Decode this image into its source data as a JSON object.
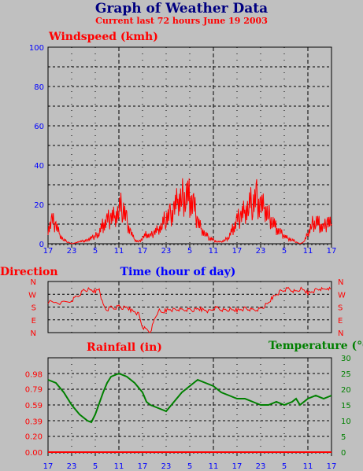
{
  "header": {
    "title": "Graph of Weather Data",
    "subtitle": "Current last 72 hours June 19 2003"
  },
  "colors": {
    "background": "#c0c0c0",
    "wind": "#ff0000",
    "direction": "#ff0000",
    "temperature": "#008000",
    "rainfall": "#ff0000",
    "axis_blue": "#0000ff",
    "title": "#000080"
  },
  "chart_data": [
    {
      "id": "windspeed",
      "type": "line",
      "title": "Windspeed (kmh)",
      "xlabel": "Time (hour of day)",
      "ylim": [
        0,
        100
      ],
      "yticks": [
        0,
        20,
        40,
        60,
        80,
        100
      ],
      "xticks": [
        "17",
        "23",
        "5",
        "11",
        "17",
        "23",
        "5",
        "11",
        "17",
        "23",
        "5",
        "11",
        "17"
      ],
      "x_range_hours": [
        0,
        72
      ],
      "grid": true,
      "series": [
        {
          "x": [
            0,
            1,
            2,
            3,
            4,
            5,
            6,
            8,
            10,
            12,
            13,
            14,
            15,
            16,
            17,
            18,
            19,
            20,
            21,
            22,
            23,
            24,
            25,
            26,
            27,
            28,
            29,
            30,
            31,
            32,
            33,
            34,
            35,
            36,
            37,
            38,
            39,
            40,
            41,
            42,
            43,
            44,
            45,
            46,
            47,
            48,
            49,
            50,
            51,
            52,
            53,
            54,
            55,
            56,
            57,
            58,
            59,
            60,
            61,
            62,
            63,
            64,
            65,
            66,
            67,
            68,
            69,
            70,
            71,
            72
          ],
          "y": [
            8,
            12,
            10,
            5,
            2,
            1,
            0,
            1,
            2,
            4,
            6,
            10,
            12,
            14,
            15,
            18,
            20,
            12,
            6,
            2,
            1,
            3,
            5,
            4,
            6,
            8,
            10,
            14,
            15,
            18,
            22,
            24,
            26,
            24,
            20,
            12,
            8,
            5,
            3,
            2,
            1,
            1,
            2,
            4,
            8,
            12,
            15,
            18,
            20,
            22,
            24,
            20,
            18,
            15,
            12,
            8,
            6,
            4,
            3,
            2,
            1,
            0,
            1,
            5,
            10,
            12,
            10,
            8,
            12,
            10
          ]
        }
      ]
    },
    {
      "id": "direction",
      "type": "line",
      "title": "Direction",
      "yticks": [
        "N",
        "E",
        "S",
        "W",
        "N"
      ],
      "ylim": [
        0,
        360
      ],
      "grid": true,
      "series": [
        {
          "x": [
            0,
            2,
            4,
            6,
            7,
            8,
            9,
            10,
            11,
            12,
            13,
            14,
            15,
            16,
            17,
            18,
            19,
            20,
            21,
            22,
            23,
            24,
            25,
            26,
            27,
            28,
            29,
            30,
            31,
            32,
            33,
            34,
            35,
            36,
            37,
            38,
            39,
            40,
            41,
            42,
            43,
            44,
            45,
            46,
            47,
            48,
            49,
            50,
            51,
            52,
            53,
            54,
            55,
            56,
            57,
            58,
            59,
            60,
            61,
            62,
            63,
            64,
            65,
            66,
            67,
            68,
            69,
            70,
            71,
            72
          ],
          "y": [
            220,
            215,
            210,
            225,
            250,
            270,
            300,
            305,
            300,
            290,
            310,
            190,
            160,
            180,
            175,
            190,
            175,
            180,
            160,
            150,
            130,
            40,
            20,
            10,
            90,
            160,
            140,
            160,
            165,
            160,
            165,
            160,
            165,
            165,
            160,
            170,
            165,
            160,
            150,
            170,
            175,
            165,
            160,
            165,
            160,
            160,
            165,
            170,
            165,
            160,
            165,
            170,
            190,
            210,
            250,
            270,
            290,
            300,
            310,
            300,
            290,
            310,
            300,
            280,
            290,
            300,
            310,
            300,
            320,
            300
          ]
        }
      ]
    },
    {
      "id": "rainfall_temperature",
      "type": "line",
      "title": "Rainfall (in)",
      "y2label": "Temperature (°C)",
      "ylim": [
        0,
        1.18
      ],
      "yticks": [
        "0.00",
        "0.20",
        "0.39",
        "0.59",
        "0.79",
        "0.98"
      ],
      "y2lim": [
        0,
        30
      ],
      "y2ticks": [
        0,
        5,
        10,
        15,
        20,
        25,
        30
      ],
      "grid": true,
      "series": [
        {
          "name": "Temperature",
          "x": [
            0,
            2,
            4,
            6,
            8,
            10,
            11,
            12,
            14,
            15,
            16,
            18,
            20,
            22,
            24,
            25,
            26,
            28,
            30,
            32,
            34,
            36,
            38,
            40,
            42,
            44,
            46,
            48,
            50,
            52,
            54,
            56,
            58,
            60,
            62,
            63,
            64,
            66,
            68,
            70,
            72
          ],
          "y": [
            23,
            22,
            19,
            15,
            12,
            10,
            9.5,
            12,
            19,
            22,
            24,
            25,
            24,
            22,
            19,
            16,
            15,
            14,
            13,
            16,
            19,
            21,
            23,
            22,
            21,
            19,
            18,
            17,
            17,
            16,
            15,
            15,
            16,
            15,
            16,
            17,
            15,
            17,
            18,
            17,
            18
          ]
        },
        {
          "name": "Rainfall",
          "x": [
            0,
            72
          ],
          "y": [
            0,
            0
          ]
        }
      ]
    }
  ]
}
